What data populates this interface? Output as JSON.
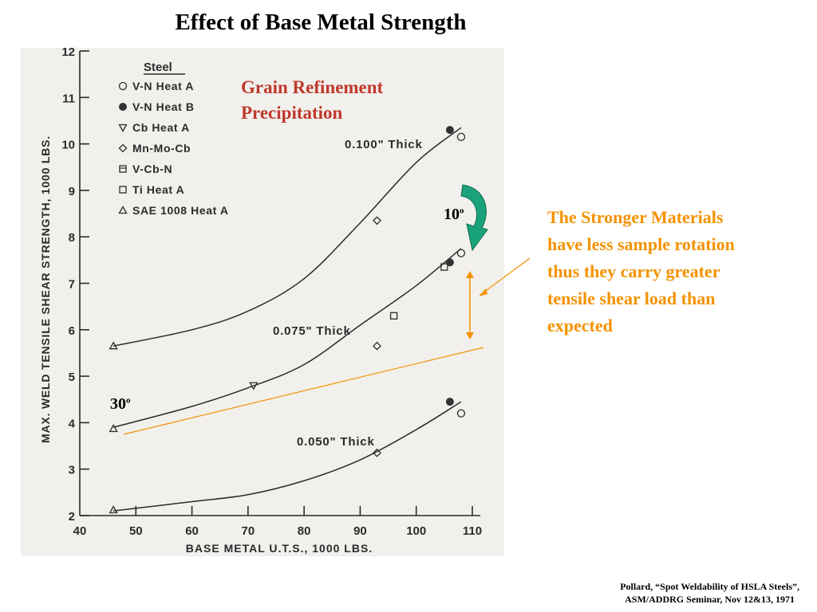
{
  "slide": {
    "title": "Effect of Base Metal Strength",
    "overlay_title": {
      "line1": "Grain Refinement",
      "line2": "Precipitation",
      "color": "#c0392b"
    },
    "note": {
      "lines": [
        "The Stronger Materials",
        "have less sample rotation",
        "thus they carry greater",
        "tensile shear load than",
        "expected"
      ],
      "color": "#f39200"
    },
    "angle_large": "30",
    "angle_small": "10",
    "angle_unit": "o",
    "citation": {
      "line1": "Pollard, “Spot Weldability of HSLA Steels”,",
      "line2": "ASM/ADDRG Seminar, Nov 12&13, 1971"
    }
  },
  "chart_data": {
    "type": "line",
    "xlabel": "BASE METAL U.T.S., 1000 LBS.",
    "ylabel": "MAX. WELD TENSILE SHEAR STRENGTH, 1000 LBS.",
    "xlim": [
      40,
      110
    ],
    "ylim": [
      2,
      12
    ],
    "x_ticks": [
      40,
      50,
      60,
      70,
      80,
      90,
      100,
      110
    ],
    "y_ticks": [
      2,
      3,
      4,
      5,
      6,
      7,
      8,
      9,
      10,
      11,
      12
    ],
    "grid": false,
    "legend_title": "Steel",
    "legend": [
      {
        "name": "V-N Heat A",
        "marker": "open-circle"
      },
      {
        "name": "V-N Heat B",
        "marker": "filled-circle"
      },
      {
        "name": "Cb Heat A",
        "marker": "down-triangle"
      },
      {
        "name": "Mn-Mo-Cb",
        "marker": "diamond"
      },
      {
        "name": "V-Cb-N",
        "marker": "open-square-cup"
      },
      {
        "name": "Ti Heat A",
        "marker": "open-square"
      },
      {
        "name": "SAE 1008 Heat A",
        "marker": "up-triangle"
      }
    ],
    "series": [
      {
        "name": "0.100\" Thick",
        "curve": [
          [
            46,
            5.65
          ],
          [
            60,
            6.0
          ],
          [
            70,
            6.4
          ],
          [
            80,
            7.1
          ],
          [
            90,
            8.3
          ],
          [
            100,
            9.6
          ],
          [
            108,
            10.35
          ]
        ],
        "points": [
          {
            "x": 46,
            "y": 5.65,
            "marker": "up-triangle"
          },
          {
            "x": 93,
            "y": 8.35,
            "marker": "diamond"
          },
          {
            "x": 106,
            "y": 10.3,
            "marker": "filled-circle"
          },
          {
            "x": 108,
            "y": 10.15,
            "marker": "open-circle"
          }
        ]
      },
      {
        "name": "0.075\" Thick",
        "curve": [
          [
            46,
            3.9
          ],
          [
            60,
            4.35
          ],
          [
            70,
            4.75
          ],
          [
            80,
            5.25
          ],
          [
            90,
            6.1
          ],
          [
            100,
            6.95
          ],
          [
            108,
            7.75
          ]
        ],
        "points": [
          {
            "x": 46,
            "y": 3.87,
            "marker": "up-triangle"
          },
          {
            "x": 71,
            "y": 4.8,
            "marker": "down-triangle"
          },
          {
            "x": 93,
            "y": 5.65,
            "marker": "diamond"
          },
          {
            "x": 96,
            "y": 6.3,
            "marker": "open-square"
          },
          {
            "x": 105,
            "y": 7.35,
            "marker": "open-square"
          },
          {
            "x": 106,
            "y": 7.45,
            "marker": "filled-circle"
          },
          {
            "x": 108,
            "y": 7.65,
            "marker": "open-circle"
          }
        ]
      },
      {
        "name": "0.050\" Thick",
        "curve": [
          [
            46,
            2.1
          ],
          [
            60,
            2.3
          ],
          [
            70,
            2.45
          ],
          [
            80,
            2.75
          ],
          [
            90,
            3.2
          ],
          [
            100,
            3.85
          ],
          [
            108,
            4.45
          ]
        ],
        "points": [
          {
            "x": 46,
            "y": 2.12,
            "marker": "up-triangle"
          },
          {
            "x": 93,
            "y": 3.35,
            "marker": "diamond"
          },
          {
            "x": 106,
            "y": 4.45,
            "marker": "filled-circle"
          },
          {
            "x": 108,
            "y": 4.2,
            "marker": "open-circle"
          }
        ]
      }
    ],
    "colors": {
      "panel": "#f1f0ec",
      "ink": "#2b2b2b",
      "orange": "#f39200",
      "green": "#1aa37a"
    }
  }
}
